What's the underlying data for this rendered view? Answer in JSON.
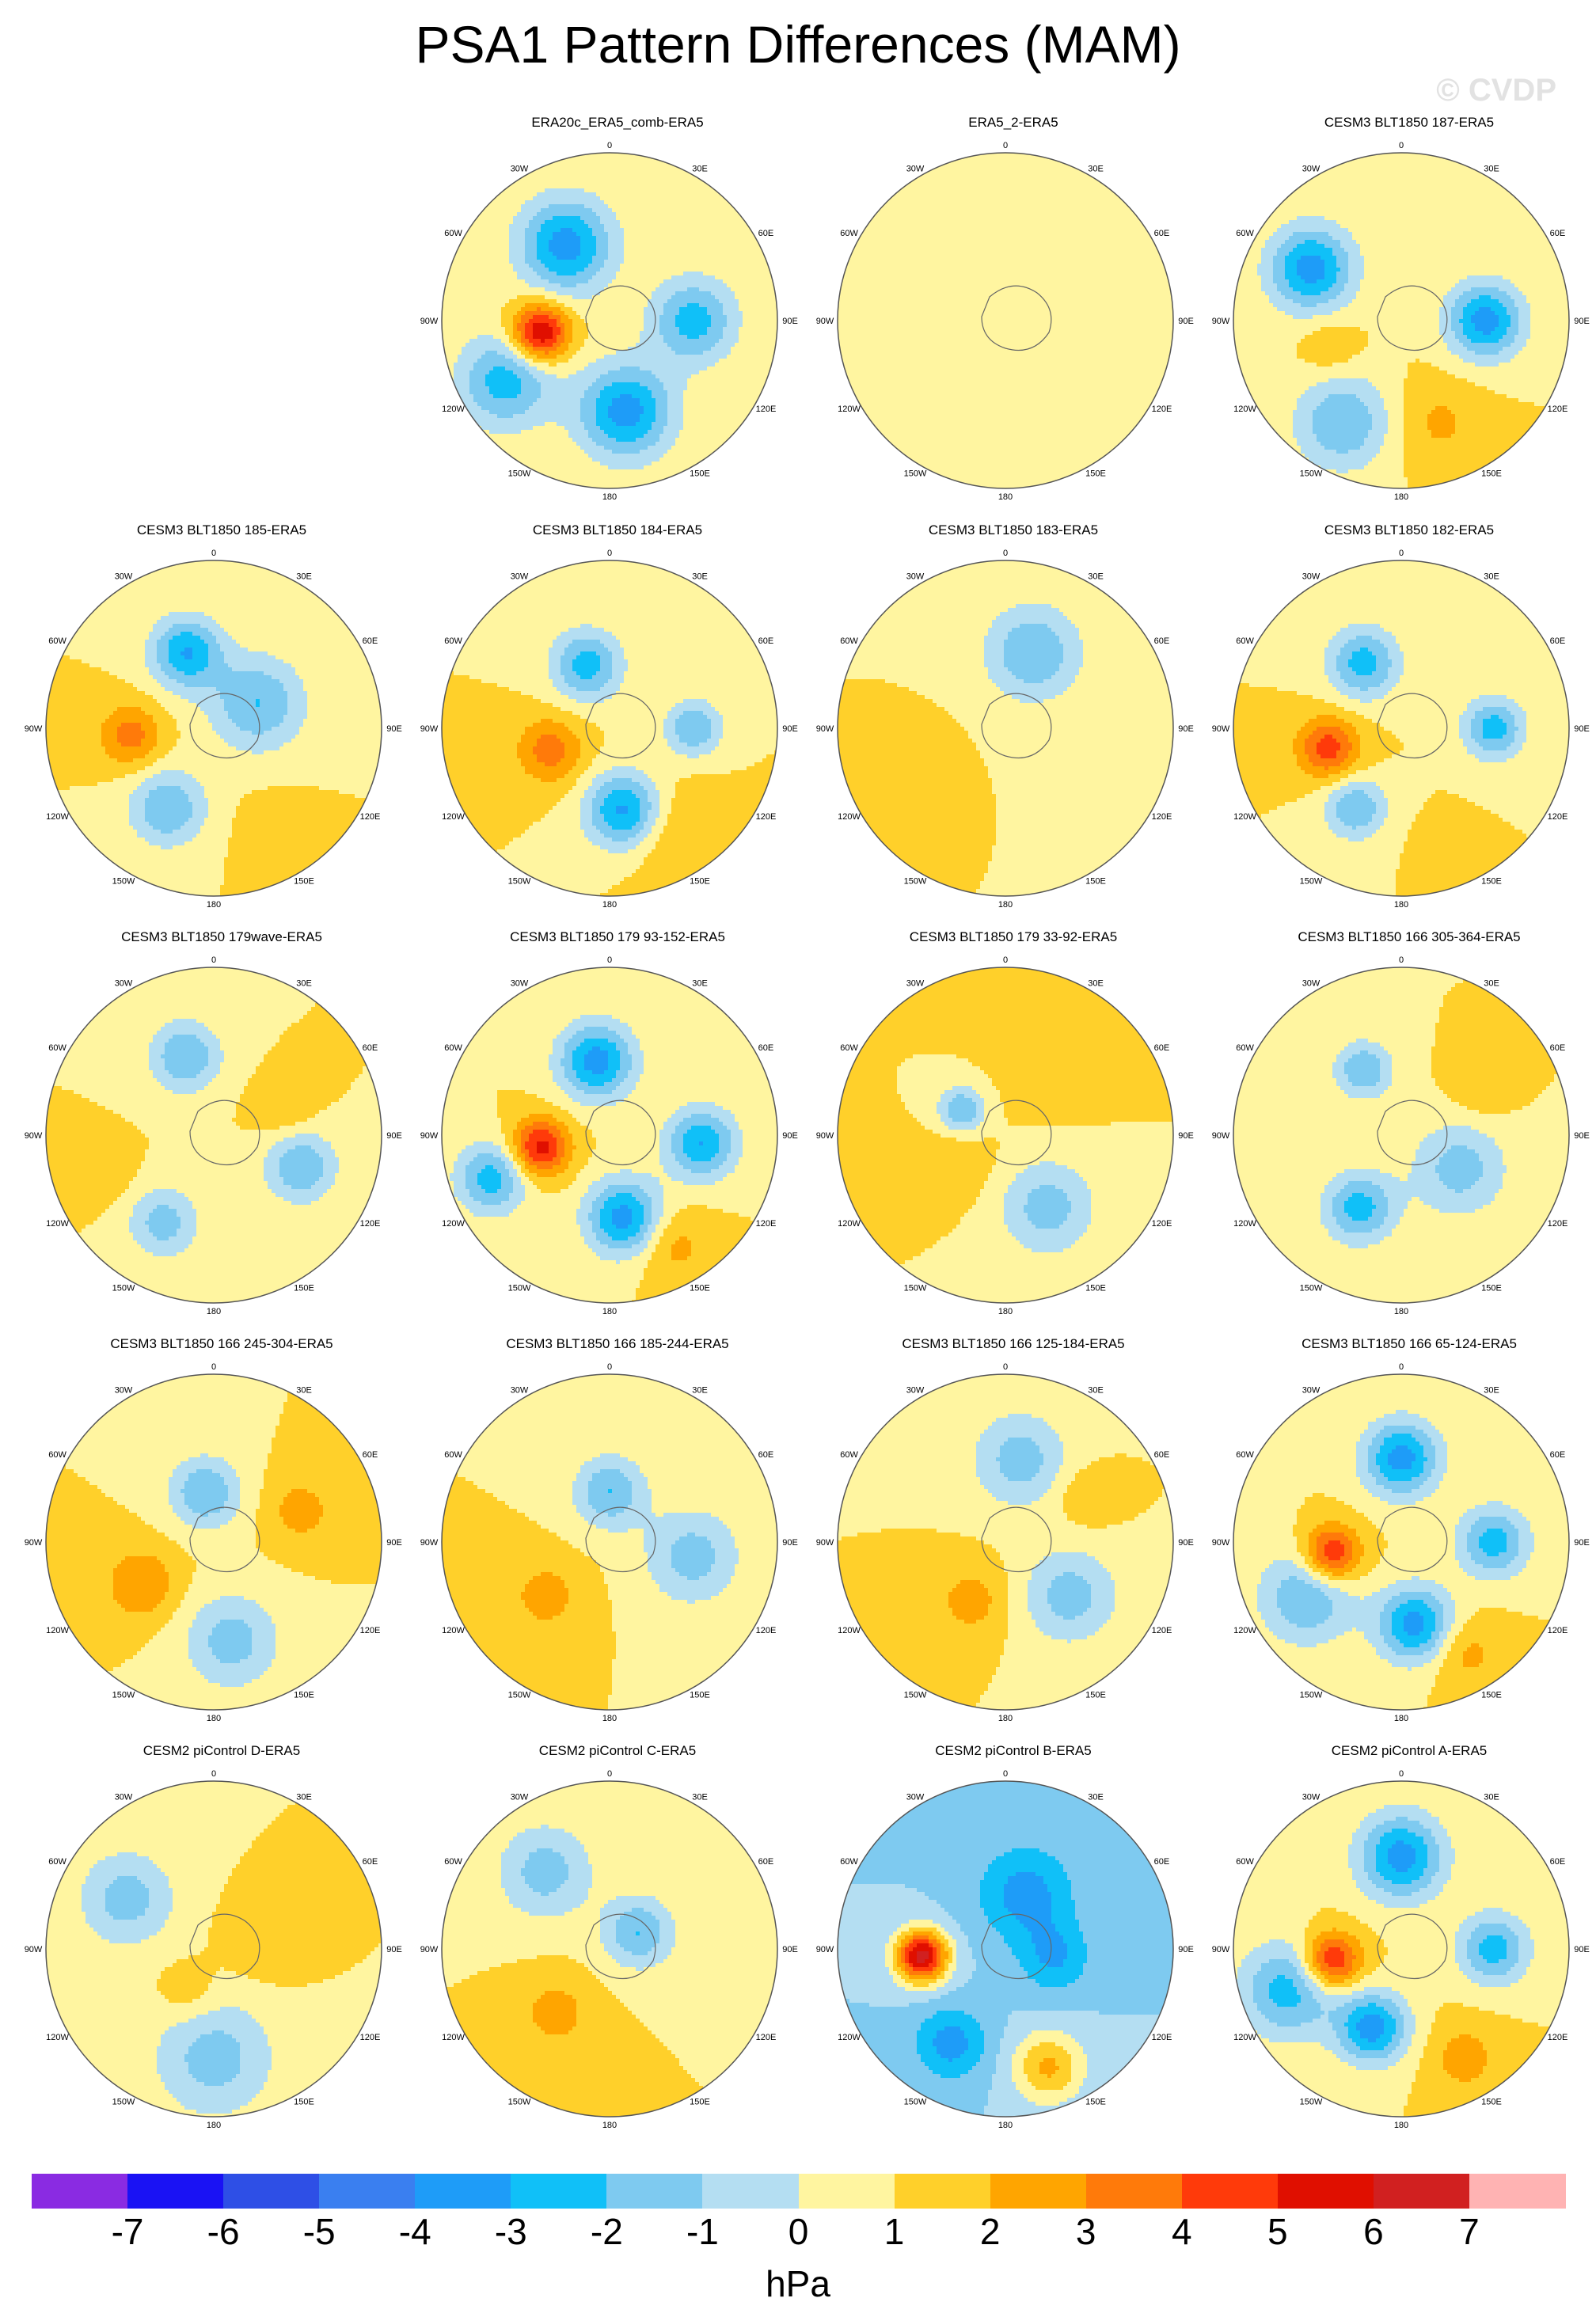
{
  "title": "PSA1 Pattern Differences (MAM)",
  "watermark": "© CVDP",
  "units": "hPa",
  "lon_labels": [
    "0",
    "30E",
    "60E",
    "90E",
    "120E",
    "150E",
    "180",
    "150W",
    "120W",
    "90W",
    "60W",
    "30W"
  ],
  "colorbar": {
    "levels": [
      "-7",
      "-6",
      "-5",
      "-4",
      "-3",
      "-2",
      "-1",
      "0",
      "1",
      "2",
      "3",
      "4",
      "5",
      "6",
      "7"
    ],
    "colors": [
      "#8a2be2",
      "#1a12f4",
      "#2e4fe6",
      "#3a7ff0",
      "#1e9cf8",
      "#10c0f8",
      "#7ecaf0",
      "#b4def2",
      "#fff5a0",
      "#ffd02a",
      "#ffa500",
      "#ff7a0a",
      "#ff3a0a",
      "#e00f00",
      "#d12020",
      "#ffb3b3"
    ]
  },
  "chart_data": {
    "type": "heatmap",
    "projection": "south-polar-stereographic",
    "units": "hPa",
    "contour_levels": [
      -7,
      -6,
      -5,
      -4,
      -3,
      -2,
      -1,
      0,
      1,
      2,
      3,
      4,
      5,
      6,
      7
    ],
    "panels": [
      {
        "title": "ERA20c_ERA5_comb-ERA5",
        "base": 1,
        "centers": [
          {
            "lon": -100,
            "r": 0.42,
            "v": 6.5,
            "s": 0.12
          },
          {
            "lon": -30,
            "r": 0.52,
            "v": -3.5,
            "s": 0.2
          },
          {
            "lon": 170,
            "r": 0.55,
            "v": -3.5,
            "s": 0.2
          },
          {
            "lon": 90,
            "r": 0.5,
            "v": -2.5,
            "s": 0.18
          },
          {
            "lon": -120,
            "r": 0.72,
            "v": -2.5,
            "s": 0.2
          }
        ]
      },
      {
        "title": "ERA5_2-ERA5",
        "base": 1,
        "centers": [
          {
            "lon": 80,
            "r": 0.5,
            "v": 0.9,
            "s": 0.3
          },
          {
            "lon": -30,
            "r": 0.6,
            "v": 0.9,
            "s": 0.25
          },
          {
            "lon": 160,
            "r": 0.6,
            "v": 0.9,
            "s": 0.25
          }
        ]
      },
      {
        "title": "CESM3 BLT1850 187-ERA5",
        "base": 1,
        "centers": [
          {
            "lon": -60,
            "r": 0.62,
            "v": -3.5,
            "s": 0.18
          },
          {
            "lon": 90,
            "r": 0.5,
            "v": -3.5,
            "s": 0.16
          },
          {
            "lon": -110,
            "r": 0.45,
            "v": 2,
            "s": 0.12
          },
          {
            "lon": 160,
            "r": 0.65,
            "v": 2.2,
            "s": 0.18
          },
          {
            "lon": -150,
            "r": 0.7,
            "v": -2,
            "s": 0.2
          }
        ]
      },
      {
        "title": "CESM3 BLT1850 185-ERA5",
        "base": 1,
        "centers": [
          {
            "lon": -95,
            "r": 0.5,
            "v": 3.5,
            "s": 0.13
          },
          {
            "lon": -20,
            "r": 0.48,
            "v": -3,
            "s": 0.15
          },
          {
            "lon": 60,
            "r": 0.3,
            "v": -2,
            "s": 0.2
          },
          {
            "lon": -150,
            "r": 0.55,
            "v": -2,
            "s": 0.16
          },
          {
            "lon": 150,
            "r": 0.7,
            "v": 1.5,
            "s": 0.15
          }
        ]
      },
      {
        "title": "CESM3 BLT1850 184-ERA5",
        "base": 1,
        "centers": [
          {
            "lon": -110,
            "r": 0.38,
            "v": 3.5,
            "s": 0.14
          },
          {
            "lon": 170,
            "r": 0.5,
            "v": -3.5,
            "s": 0.16
          },
          {
            "lon": -20,
            "r": 0.4,
            "v": -2.5,
            "s": 0.15
          },
          {
            "lon": 150,
            "r": 0.7,
            "v": 2.2,
            "s": 0.2
          },
          {
            "lon": 90,
            "r": 0.5,
            "v": -2,
            "s": 0.12
          }
        ]
      },
      {
        "title": "CESM3 BLT1850 183-ERA5",
        "base": 1,
        "centers": [
          {
            "lon": 20,
            "r": 0.48,
            "v": -2,
            "s": 0.2
          },
          {
            "lon": -110,
            "r": 0.55,
            "v": 2,
            "s": 0.12
          },
          {
            "lon": 90,
            "r": 0.5,
            "v": 1,
            "s": 0.25
          }
        ]
      },
      {
        "title": "CESM3 BLT1850 182-ERA5",
        "base": 1,
        "centers": [
          {
            "lon": -105,
            "r": 0.45,
            "v": 4.5,
            "s": 0.13
          },
          {
            "lon": -30,
            "r": 0.45,
            "v": -2.5,
            "s": 0.15
          },
          {
            "lon": 90,
            "r": 0.55,
            "v": -2.5,
            "s": 0.13
          },
          {
            "lon": -150,
            "r": 0.55,
            "v": -2,
            "s": 0.13
          },
          {
            "lon": 160,
            "r": 0.75,
            "v": 2,
            "s": 0.1
          }
        ]
      },
      {
        "title": "CESM3 BLT1850 179wave-ERA5",
        "base": 1,
        "centers": [
          {
            "lon": 70,
            "r": 0.45,
            "v": 2,
            "s": 0.12
          },
          {
            "lon": 110,
            "r": 0.55,
            "v": -2,
            "s": 0.15
          },
          {
            "lon": -110,
            "r": 0.7,
            "v": 1.8,
            "s": 0.12
          },
          {
            "lon": -20,
            "r": 0.5,
            "v": -2,
            "s": 0.15
          },
          {
            "lon": -150,
            "r": 0.6,
            "v": -1.5,
            "s": 0.15
          }
        ]
      },
      {
        "title": "CESM3 BLT1850 179 93-152-ERA5",
        "base": 1,
        "centers": [
          {
            "lon": -100,
            "r": 0.42,
            "v": 5.5,
            "s": 0.12
          },
          {
            "lon": -10,
            "r": 0.45,
            "v": -3.5,
            "s": 0.16
          },
          {
            "lon": 170,
            "r": 0.5,
            "v": -3.5,
            "s": 0.16
          },
          {
            "lon": 95,
            "r": 0.55,
            "v": -3,
            "s": 0.15
          },
          {
            "lon": 150,
            "r": 0.75,
            "v": 2.5,
            "s": 0.15
          },
          {
            "lon": -110,
            "r": 0.75,
            "v": -2.5,
            "s": 0.15
          }
        ]
      },
      {
        "title": "CESM3 BLT1850 179 33-92-ERA5",
        "base": 1,
        "centers": [
          {
            "lon": -120,
            "r": 0.35,
            "v": 2,
            "s": 0.15
          },
          {
            "lon": -60,
            "r": 0.3,
            "v": -2,
            "s": 0.1
          },
          {
            "lon": 30,
            "r": 0.45,
            "v": 1.5,
            "s": 0.2
          },
          {
            "lon": 150,
            "r": 0.5,
            "v": -1.5,
            "s": 0.2
          }
        ]
      },
      {
        "title": "CESM3 BLT1850 166 305-364-ERA5",
        "base": 1,
        "centers": [
          {
            "lon": -150,
            "r": 0.5,
            "v": -2.5,
            "s": 0.15
          },
          {
            "lon": -30,
            "r": 0.45,
            "v": -2,
            "s": 0.12
          },
          {
            "lon": 60,
            "r": 0.55,
            "v": 2,
            "s": 0.12
          },
          {
            "lon": 120,
            "r": 0.4,
            "v": -1.5,
            "s": 0.2
          }
        ]
      },
      {
        "title": "CESM3 BLT1850 166 245-304-ERA5",
        "base": 1,
        "centers": [
          {
            "lon": -120,
            "r": 0.5,
            "v": 3,
            "s": 0.15
          },
          {
            "lon": 70,
            "r": 0.55,
            "v": 2.5,
            "s": 0.14
          },
          {
            "lon": -10,
            "r": 0.3,
            "v": -2,
            "s": 0.15
          },
          {
            "lon": 170,
            "r": 0.6,
            "v": -1.5,
            "s": 0.2
          }
        ]
      },
      {
        "title": "CESM3 BLT1850 166 185-244-ERA5",
        "base": 1,
        "centers": [
          {
            "lon": -130,
            "r": 0.5,
            "v": 2.5,
            "s": 0.15
          },
          {
            "lon": 0,
            "r": 0.3,
            "v": -2,
            "s": 0.15
          },
          {
            "lon": 100,
            "r": 0.5,
            "v": -1.5,
            "s": 0.2
          }
        ]
      },
      {
        "title": "CESM3 BLT1850 166 125-184-ERA5",
        "base": 1,
        "centers": [
          {
            "lon": -150,
            "r": 0.4,
            "v": 2.5,
            "s": 0.15
          },
          {
            "lon": 60,
            "r": 0.55,
            "v": 2,
            "s": 0.12
          },
          {
            "lon": 10,
            "r": 0.5,
            "v": -1.5,
            "s": 0.2
          },
          {
            "lon": 130,
            "r": 0.5,
            "v": -1.5,
            "s": 0.2
          }
        ]
      },
      {
        "title": "CESM3 BLT1850 166 65-124-ERA5",
        "base": 1,
        "centers": [
          {
            "lon": -100,
            "r": 0.42,
            "v": 5.5,
            "s": 0.12
          },
          {
            "lon": 0,
            "r": 0.5,
            "v": -3.5,
            "s": 0.16
          },
          {
            "lon": 170,
            "r": 0.5,
            "v": -3.5,
            "s": 0.16
          },
          {
            "lon": 90,
            "r": 0.55,
            "v": -2.5,
            "s": 0.15
          },
          {
            "lon": 150,
            "r": 0.75,
            "v": 2.5,
            "s": 0.15
          },
          {
            "lon": -120,
            "r": 0.65,
            "v": -2,
            "s": 0.2
          }
        ]
      },
      {
        "title": "CESM2 piControl D-ERA5",
        "base": 1,
        "centers": [
          {
            "lon": 80,
            "r": 0.3,
            "v": 2,
            "s": 0.15
          },
          {
            "lon": -150,
            "r": 0.3,
            "v": 2,
            "s": 0.12
          },
          {
            "lon": 180,
            "r": 0.65,
            "v": -1.5,
            "s": 0.25
          },
          {
            "lon": -60,
            "r": 0.6,
            "v": -1.5,
            "s": 0.2
          }
        ]
      },
      {
        "title": "CESM2 piControl C-ERA5",
        "base": 1,
        "centers": [
          {
            "lon": -140,
            "r": 0.5,
            "v": 2.5,
            "s": 0.15
          },
          {
            "lon": 60,
            "r": 0.2,
            "v": -2,
            "s": 0.15
          },
          {
            "lon": -40,
            "r": 0.6,
            "v": -1.5,
            "s": 0.2
          }
        ]
      },
      {
        "title": "CESM2 piControl B-ERA5",
        "base": -1,
        "centers": [
          {
            "lon": -95,
            "r": 0.5,
            "v": 6.5,
            "s": 0.11
          },
          {
            "lon": 20,
            "r": 0.35,
            "v": -3.5,
            "s": 0.2
          },
          {
            "lon": -150,
            "r": 0.65,
            "v": -3.5,
            "s": 0.15
          },
          {
            "lon": 160,
            "r": 0.75,
            "v": 2.2,
            "s": 0.15
          },
          {
            "lon": 100,
            "r": 0.3,
            "v": -3,
            "s": 0.15
          }
        ]
      },
      {
        "title": "CESM2 piControl A-ERA5",
        "base": 1,
        "centers": [
          {
            "lon": -100,
            "r": 0.42,
            "v": 5.5,
            "s": 0.12
          },
          {
            "lon": 0,
            "r": 0.55,
            "v": -3.5,
            "s": 0.18
          },
          {
            "lon": -160,
            "r": 0.5,
            "v": -3.5,
            "s": 0.15
          },
          {
            "lon": 90,
            "r": 0.55,
            "v": -2.5,
            "s": 0.15
          },
          {
            "lon": 150,
            "r": 0.75,
            "v": 2.5,
            "s": 0.15
          },
          {
            "lon": -110,
            "r": 0.72,
            "v": -2.5,
            "s": 0.2
          }
        ]
      }
    ]
  }
}
